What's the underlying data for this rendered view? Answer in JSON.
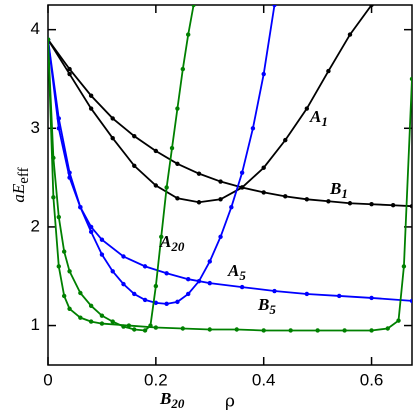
{
  "chart_data": {
    "type": "line",
    "x_label": "ρ",
    "y_label": {
      "main": "aE",
      "sub": "eff"
    },
    "xlim": [
      0,
      0.675
    ],
    "ylim": [
      0.6,
      4.25
    ],
    "xticks": [
      0,
      0.2,
      0.4,
      0.6
    ],
    "yticks": [
      1,
      2,
      3,
      4
    ],
    "markers": true,
    "series": [
      {
        "name": "A",
        "subscript": "1",
        "color": "#000000",
        "x": [
          0,
          0.04,
          0.08,
          0.12,
          0.16,
          0.2,
          0.24,
          0.28,
          0.32,
          0.36,
          0.4,
          0.44,
          0.48,
          0.52,
          0.56,
          0.6
        ],
        "values": [
          3.9,
          3.55,
          3.2,
          2.9,
          2.62,
          2.42,
          2.29,
          2.25,
          2.28,
          2.4,
          2.6,
          2.88,
          3.2,
          3.58,
          3.95,
          4.25
        ]
      },
      {
        "name": "B",
        "subscript": "1",
        "color": "#000000",
        "x": [
          0,
          0.04,
          0.08,
          0.12,
          0.16,
          0.2,
          0.24,
          0.28,
          0.32,
          0.36,
          0.4,
          0.44,
          0.48,
          0.52,
          0.56,
          0.6,
          0.64,
          0.675
        ],
        "values": [
          3.9,
          3.6,
          3.33,
          3.1,
          2.92,
          2.77,
          2.64,
          2.54,
          2.46,
          2.4,
          2.35,
          2.31,
          2.28,
          2.26,
          2.24,
          2.23,
          2.22,
          2.21
        ]
      },
      {
        "name": "A",
        "subscript": "5",
        "color": "#0000ff",
        "x": [
          0,
          0.02,
          0.04,
          0.06,
          0.08,
          0.1,
          0.12,
          0.14,
          0.16,
          0.18,
          0.2,
          0.22,
          0.24,
          0.26,
          0.28,
          0.3,
          0.32,
          0.34,
          0.36,
          0.38,
          0.4,
          0.42
        ],
        "values": [
          3.9,
          3.1,
          2.55,
          2.2,
          1.95,
          1.72,
          1.55,
          1.42,
          1.32,
          1.26,
          1.23,
          1.22,
          1.24,
          1.32,
          1.45,
          1.65,
          1.9,
          2.2,
          2.55,
          3.0,
          3.55,
          4.25
        ]
      },
      {
        "name": "B",
        "subscript": "5",
        "color": "#0000ff",
        "x": [
          0,
          0.02,
          0.04,
          0.06,
          0.08,
          0.1,
          0.14,
          0.18,
          0.22,
          0.26,
          0.3,
          0.36,
          0.42,
          0.48,
          0.54,
          0.6,
          0.675
        ],
        "values": [
          3.9,
          3.0,
          2.5,
          2.2,
          2.0,
          1.87,
          1.7,
          1.6,
          1.53,
          1.47,
          1.43,
          1.39,
          1.35,
          1.32,
          1.3,
          1.28,
          1.25
        ]
      },
      {
        "name": "A",
        "subscript": "20",
        "color": "#008000",
        "x": [
          0,
          0.01,
          0.02,
          0.03,
          0.04,
          0.06,
          0.08,
          0.1,
          0.12,
          0.14,
          0.16,
          0.18,
          0.19,
          0.2,
          0.21,
          0.22,
          0.23,
          0.24,
          0.25,
          0.26,
          0.27
        ],
        "values": [
          3.9,
          2.7,
          2.1,
          1.75,
          1.55,
          1.33,
          1.2,
          1.1,
          1.04,
          0.99,
          0.96,
          0.95,
          1.0,
          1.4,
          1.9,
          2.4,
          2.8,
          3.2,
          3.6,
          3.95,
          4.25
        ]
      },
      {
        "name": "B",
        "subscript": "20",
        "color": "#008000",
        "x": [
          0,
          0.01,
          0.02,
          0.03,
          0.04,
          0.06,
          0.08,
          0.1,
          0.15,
          0.2,
          0.25,
          0.3,
          0.35,
          0.4,
          0.45,
          0.5,
          0.55,
          0.6,
          0.63,
          0.65,
          0.66,
          0.675
        ],
        "values": [
          3.9,
          2.3,
          1.6,
          1.3,
          1.17,
          1.08,
          1.04,
          1.02,
          1.0,
          0.98,
          0.97,
          0.96,
          0.96,
          0.95,
          0.95,
          0.95,
          0.95,
          0.95,
          0.97,
          1.05,
          1.6,
          3.5
        ]
      }
    ]
  }
}
